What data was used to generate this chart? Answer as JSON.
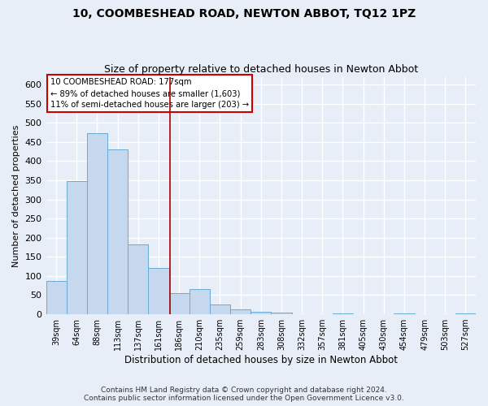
{
  "title1": "10, COOMBESHEAD ROAD, NEWTON ABBOT, TQ12 1PZ",
  "title2": "Size of property relative to detached houses in Newton Abbot",
  "xlabel": "Distribution of detached houses by size in Newton Abbot",
  "ylabel": "Number of detached properties",
  "footer1": "Contains HM Land Registry data © Crown copyright and database right 2024.",
  "footer2": "Contains public sector information licensed under the Open Government Licence v3.0.",
  "categories": [
    "39sqm",
    "64sqm",
    "88sqm",
    "113sqm",
    "137sqm",
    "161sqm",
    "186sqm",
    "210sqm",
    "235sqm",
    "259sqm",
    "283sqm",
    "308sqm",
    "332sqm",
    "357sqm",
    "381sqm",
    "405sqm",
    "430sqm",
    "454sqm",
    "479sqm",
    "503sqm",
    "527sqm"
  ],
  "values": [
    88,
    348,
    472,
    430,
    183,
    122,
    55,
    65,
    25,
    13,
    6,
    4,
    1,
    1,
    3,
    1,
    1,
    3,
    1,
    1,
    3
  ],
  "bar_color": "#c5d8ee",
  "bar_edge_color": "#6aaad4",
  "annotation_line1": "10 COOMBESHEAD ROAD: 177sqm",
  "annotation_line2": "← 89% of detached houses are smaller (1,603)",
  "annotation_line3": "11% of semi-detached houses are larger (203) →",
  "vline_x": 5.55,
  "vline_color": "#aa0000",
  "annotation_box_color": "white",
  "annotation_box_edge_color": "#cc0000",
  "ylim": [
    0,
    620
  ],
  "yticks": [
    0,
    50,
    100,
    150,
    200,
    250,
    300,
    350,
    400,
    450,
    500,
    550,
    600
  ],
  "background_color": "#e8eef8",
  "grid_color": "white",
  "title1_fontsize": 10,
  "title2_fontsize": 9,
  "ylabel_fontsize": 8,
  "xlabel_fontsize": 8.5,
  "tick_fontsize": 7,
  "footer_fontsize": 6.5
}
